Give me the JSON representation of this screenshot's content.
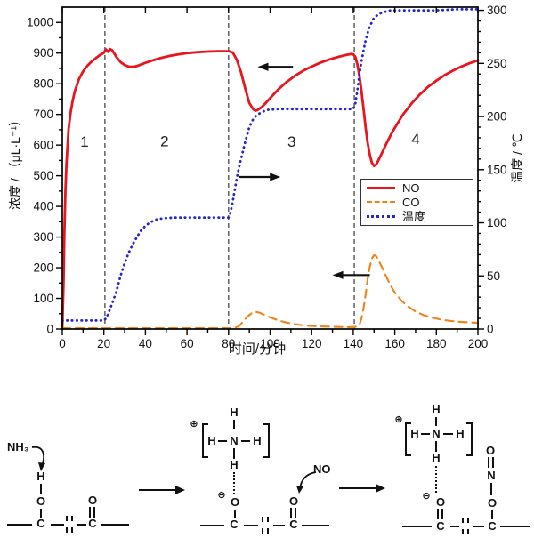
{
  "chart_data": {
    "type": "line",
    "xlabel": "时间/分钟",
    "ylabel_left": "浓度 / （μL·L⁻¹）",
    "ylabel_right": "温度 / ℃",
    "x_range": [
      0,
      200
    ],
    "x_ticks": [
      0,
      20,
      40,
      60,
      80,
      100,
      120,
      140,
      160,
      180,
      200
    ],
    "x_minor_step": 10,
    "y_left_range": [
      0,
      1050
    ],
    "y_left_ticks": [
      0,
      100,
      200,
      300,
      400,
      500,
      600,
      700,
      800,
      900,
      1000
    ],
    "y_left_minor_step": 50,
    "y_right_range": [
      0,
      303
    ],
    "y_right_ticks": [
      0,
      50,
      100,
      150,
      200,
      250,
      300
    ],
    "y_right_minor_step": 10,
    "grid": false,
    "legend_position": "inside-right",
    "phase_boundaries_x": [
      20.5,
      80,
      140.5
    ],
    "regions": [
      {
        "label": "1",
        "x": 10.7,
        "y": 612
      },
      {
        "label": "2",
        "x": 49.2,
        "y": 614
      },
      {
        "label": "3",
        "x": 110.4,
        "y": 612
      },
      {
        "label": "4",
        "x": 170.0,
        "y": 620
      }
    ],
    "arrows": [
      {
        "from": [
          111,
          855
        ],
        "to": [
          94,
          855
        ]
      },
      {
        "from": [
          85,
          496
        ],
        "to": [
          105,
          496
        ]
      },
      {
        "from": [
          148,
          176
        ],
        "to": [
          130,
          176
        ]
      }
    ],
    "series": [
      {
        "name": "NO",
        "axis": "left",
        "color": "#e8141e",
        "style": "solid",
        "points": [
          [
            0,
            0
          ],
          [
            0.6,
            150
          ],
          [
            1,
            310
          ],
          [
            1.5,
            450
          ],
          [
            2,
            540
          ],
          [
            3,
            650
          ],
          [
            4,
            705
          ],
          [
            5,
            745
          ],
          [
            6,
            775
          ],
          [
            8,
            815
          ],
          [
            10,
            840
          ],
          [
            12,
            858
          ],
          [
            14,
            872
          ],
          [
            16,
            883
          ],
          [
            18,
            893
          ],
          [
            20,
            901
          ],
          [
            21,
            912
          ],
          [
            22,
            904
          ],
          [
            23,
            913
          ],
          [
            24,
            909
          ],
          [
            25,
            899
          ],
          [
            26,
            888
          ],
          [
            28,
            871
          ],
          [
            30,
            861
          ],
          [
            32,
            856
          ],
          [
            34,
            855
          ],
          [
            36,
            858
          ],
          [
            40,
            868
          ],
          [
            44,
            877
          ],
          [
            48,
            885
          ],
          [
            52,
            891
          ],
          [
            56,
            896
          ],
          [
            60,
            900
          ],
          [
            65,
            903
          ],
          [
            70,
            905
          ],
          [
            75,
            906
          ],
          [
            80,
            906
          ],
          [
            82,
            902
          ],
          [
            84,
            878
          ],
          [
            86,
            838
          ],
          [
            88,
            785
          ],
          [
            90,
            737
          ],
          [
            92,
            716
          ],
          [
            93,
            712
          ],
          [
            94,
            714
          ],
          [
            96,
            724
          ],
          [
            98,
            738
          ],
          [
            100,
            753
          ],
          [
            104,
            782
          ],
          [
            108,
            806
          ],
          [
            112,
            826
          ],
          [
            116,
            843
          ],
          [
            120,
            856
          ],
          [
            124,
            868
          ],
          [
            128,
            878
          ],
          [
            132,
            886
          ],
          [
            136,
            893
          ],
          [
            139,
            897
          ],
          [
            140,
            896
          ],
          [
            141,
            888
          ],
          [
            142,
            862
          ],
          [
            143,
            825
          ],
          [
            144,
            775
          ],
          [
            145,
            715
          ],
          [
            146,
            655
          ],
          [
            147,
            605
          ],
          [
            148,
            567
          ],
          [
            149,
            542
          ],
          [
            150,
            532
          ],
          [
            151,
            536
          ],
          [
            152,
            549
          ],
          [
            154,
            577
          ],
          [
            156,
            606
          ],
          [
            158,
            632
          ],
          [
            160,
            656
          ],
          [
            164,
            700
          ],
          [
            168,
            735
          ],
          [
            172,
            765
          ],
          [
            176,
            790
          ],
          [
            180,
            810
          ],
          [
            184,
            828
          ],
          [
            188,
            843
          ],
          [
            192,
            856
          ],
          [
            196,
            867
          ],
          [
            200,
            876
          ]
        ]
      },
      {
        "name": "CO",
        "axis": "left",
        "color": "#ef8218",
        "style": "dashed",
        "points": [
          [
            0,
            3
          ],
          [
            20,
            3
          ],
          [
            40,
            3
          ],
          [
            60,
            3
          ],
          [
            80,
            3
          ],
          [
            83,
            4
          ],
          [
            85,
            9
          ],
          [
            87,
            24
          ],
          [
            89,
            40
          ],
          [
            91,
            51
          ],
          [
            93,
            56
          ],
          [
            95,
            53
          ],
          [
            97,
            47
          ],
          [
            100,
            38
          ],
          [
            104,
            28
          ],
          [
            108,
            21
          ],
          [
            112,
            16
          ],
          [
            116,
            12
          ],
          [
            120,
            10
          ],
          [
            126,
            8
          ],
          [
            132,
            7
          ],
          [
            138,
            6
          ],
          [
            141,
            7
          ],
          [
            143,
            14
          ],
          [
            144,
            35
          ],
          [
            145,
            70
          ],
          [
            146,
            115
          ],
          [
            147,
            165
          ],
          [
            148,
            205
          ],
          [
            149,
            230
          ],
          [
            150,
            241
          ],
          [
            151,
            238
          ],
          [
            152,
            227
          ],
          [
            154,
            199
          ],
          [
            156,
            169
          ],
          [
            158,
            142
          ],
          [
            160,
            119
          ],
          [
            163,
            94
          ],
          [
            166,
            75
          ],
          [
            170,
            57
          ],
          [
            174,
            45
          ],
          [
            178,
            37
          ],
          [
            182,
            31
          ],
          [
            186,
            27
          ],
          [
            190,
            24
          ],
          [
            195,
            22
          ],
          [
            200,
            20
          ]
        ]
      },
      {
        "name": "温度",
        "axis": "right",
        "color": "#2525cd",
        "style": "dotted",
        "points": [
          [
            0,
            8
          ],
          [
            5,
            8
          ],
          [
            10,
            8
          ],
          [
            15,
            8
          ],
          [
            20,
            8
          ],
          [
            21,
            10
          ],
          [
            22,
            14
          ],
          [
            24,
            24
          ],
          [
            26,
            35
          ],
          [
            28,
            50
          ],
          [
            30,
            62
          ],
          [
            32,
            72
          ],
          [
            34,
            80
          ],
          [
            36,
            87
          ],
          [
            38,
            93
          ],
          [
            40,
            97
          ],
          [
            42,
            100
          ],
          [
            44,
            102
          ],
          [
            46,
            103.5
          ],
          [
            50,
            104.5
          ],
          [
            55,
            105
          ],
          [
            60,
            105
          ],
          [
            70,
            105
          ],
          [
            80,
            105
          ],
          [
            81,
            110
          ],
          [
            82,
            120
          ],
          [
            83,
            131
          ],
          [
            84,
            142
          ],
          [
            85,
            152
          ],
          [
            86,
            160
          ],
          [
            88,
            176
          ],
          [
            90,
            190
          ],
          [
            92,
            198
          ],
          [
            94,
            202
          ],
          [
            96,
            204
          ],
          [
            98,
            206
          ],
          [
            100,
            206.5
          ],
          [
            104,
            207
          ],
          [
            110,
            207
          ],
          [
            120,
            207
          ],
          [
            130,
            207
          ],
          [
            140,
            207
          ],
          [
            141,
            212
          ],
          [
            142,
            225
          ],
          [
            143,
            240
          ],
          [
            144,
            252
          ],
          [
            145,
            263
          ],
          [
            146,
            272
          ],
          [
            147,
            279
          ],
          [
            148,
            285
          ],
          [
            149,
            289
          ],
          [
            150,
            293
          ],
          [
            152,
            296
          ],
          [
            154,
            298
          ],
          [
            156,
            299
          ],
          [
            158,
            300
          ],
          [
            160,
            300
          ],
          [
            165,
            300
          ],
          [
            170,
            300
          ],
          [
            180,
            300
          ],
          [
            190,
            301
          ],
          [
            200,
            301
          ]
        ]
      }
    ]
  },
  "mechanism": {
    "reagent_nh3": "NH₃",
    "reagent_no": "NO",
    "atom_h": "H",
    "atom_o": "O",
    "atom_c": "C",
    "atom_n": "N",
    "charge_plus": "⊕",
    "charge_minus": "⊖"
  }
}
